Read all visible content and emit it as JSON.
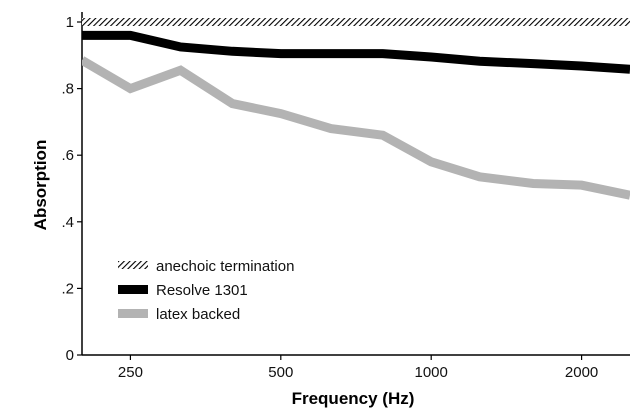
{
  "chart_data": {
    "type": "line",
    "xlabel": "Frequency (Hz)",
    "ylabel": "Absorption",
    "x_scale": "log",
    "xlim": [
      200,
      2500
    ],
    "ylim": [
      0,
      1
    ],
    "x_ticks": [
      {
        "value": 250,
        "label": "250"
      },
      {
        "value": 500,
        "label": "500"
      },
      {
        "value": 1000,
        "label": "1000"
      },
      {
        "value": 2000,
        "label": "2000"
      }
    ],
    "y_ticks": [
      {
        "value": 0,
        "label": "0"
      },
      {
        "value": 0.2,
        "label": ".2"
      },
      {
        "value": 0.4,
        "label": ".4"
      },
      {
        "value": 0.6,
        "label": ".6"
      },
      {
        "value": 0.8,
        "label": ".8"
      },
      {
        "value": 1,
        "label": "1"
      }
    ],
    "x": [
      200,
      250,
      315,
      400,
      500,
      630,
      800,
      1000,
      1250,
      1600,
      2000,
      2500
    ],
    "series": [
      {
        "name": "anechoic termination",
        "color": "#000000",
        "style": "hatched",
        "values": [
          1,
          1,
          1,
          1,
          1,
          1,
          1,
          1,
          1,
          1,
          1,
          1
        ]
      },
      {
        "name": "Resolve 1301",
        "color": "#000000",
        "style": "solid",
        "values": [
          0.96,
          0.96,
          0.925,
          0.912,
          0.905,
          0.905,
          0.905,
          0.895,
          0.882,
          0.875,
          0.868,
          0.858
        ]
      },
      {
        "name": "latex backed",
        "color": "#b3b3b3",
        "style": "solid",
        "values": [
          0.885,
          0.8,
          0.855,
          0.755,
          0.725,
          0.68,
          0.66,
          0.58,
          0.535,
          0.515,
          0.51,
          0.48
        ]
      }
    ],
    "legend_position": "bottom-left",
    "grid": false
  }
}
